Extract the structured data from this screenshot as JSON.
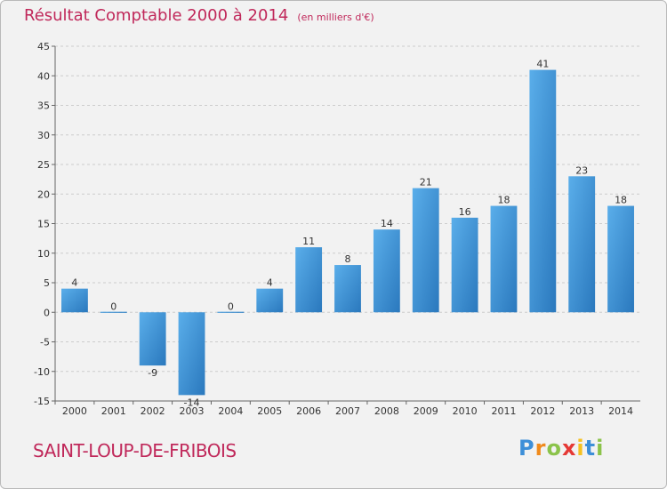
{
  "page": {
    "title": "Résultat Comptable 2000 à 2014",
    "subtitle": "(en milliers d'€)",
    "commune": "SAINT-LOUP-DE-FRIBOIS",
    "logo_text": "Proxiti"
  },
  "chart_data": {
    "type": "bar",
    "title": "Résultat Comptable 2000 à 2014",
    "subtitle": "(en milliers d'€)",
    "xlabel": "",
    "ylabel": "",
    "categories": [
      "2000",
      "2001",
      "2002",
      "2003",
      "2004",
      "2005",
      "2006",
      "2007",
      "2008",
      "2009",
      "2010",
      "2011",
      "2012",
      "2013",
      "2014"
    ],
    "values": [
      4,
      0,
      -9,
      -14,
      0,
      4,
      11,
      8,
      14,
      21,
      16,
      18,
      41,
      23,
      18
    ],
    "data_labels": [
      "4",
      "0",
      "-9",
      "-14",
      "0",
      "4",
      "11",
      "8",
      "14",
      "21",
      "16",
      "18",
      "41",
      "23",
      "18"
    ],
    "ylim": [
      -15,
      45
    ],
    "yticks": [
      -15,
      -10,
      -5,
      0,
      5,
      10,
      15,
      20,
      25,
      30,
      35,
      40,
      45
    ],
    "grid": true,
    "colors": {
      "bar_light": "#5aaeea",
      "bar_dark": "#2a78bd",
      "grid": "#cccccc",
      "axis": "#666666"
    }
  }
}
